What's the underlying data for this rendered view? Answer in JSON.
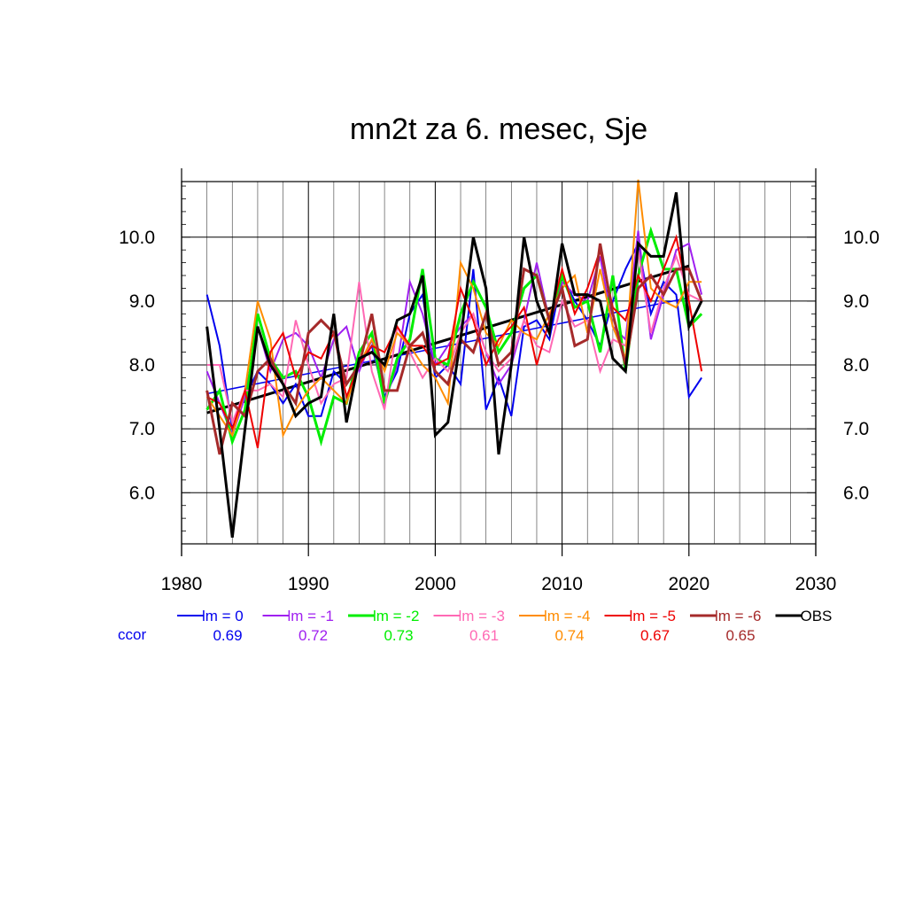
{
  "chart_data": {
    "type": "line",
    "title": "mn2t za 6. mesec, Sje",
    "xlim": [
      1980,
      2030
    ],
    "ylim": [
      5.2,
      10.87
    ],
    "x_ticks": [
      1980,
      1990,
      2000,
      2010,
      2020,
      2030
    ],
    "y_ticks": [
      6.0,
      7.0,
      8.0,
      9.0,
      10.0
    ],
    "y_tick_labels": [
      "6.0",
      "7.0",
      "8.0",
      "9.0",
      "10.0"
    ],
    "grid": true,
    "legend_placement": "below",
    "x": [
      1982,
      1983,
      1984,
      1985,
      1986,
      1987,
      1988,
      1989,
      1990,
      1991,
      1992,
      1993,
      1994,
      1995,
      1996,
      1997,
      1998,
      1999,
      2000,
      2001,
      2002,
      2003,
      2004,
      2005,
      2006,
      2007,
      2008,
      2009,
      2010,
      2011,
      2012,
      2013,
      2014,
      2015,
      2016,
      2017,
      2018,
      2019,
      2020,
      2021
    ],
    "ccor_label": "ccor",
    "series": [
      {
        "name": "lm = 0",
        "color": "#0000ee",
        "width": 2,
        "ccor": "0.69",
        "trend": [
          7.55,
          9.05
        ],
        "values": [
          9.1,
          8.3,
          7.0,
          7.5,
          7.9,
          7.7,
          7.4,
          7.7,
          7.2,
          7.2,
          7.9,
          7.7,
          8.0,
          8.3,
          7.5,
          7.9,
          8.8,
          9.1,
          7.8,
          8.0,
          7.7,
          9.5,
          7.3,
          7.8,
          7.2,
          8.6,
          8.7,
          8.4,
          9.4,
          9.0,
          8.7,
          8.3,
          9.0,
          9.5,
          9.9,
          8.8,
          9.3,
          9.1,
          7.5,
          7.8
        ]
      },
      {
        "name": "lm = -1",
        "color": "#a020f0",
        "width": 2,
        "ccor": "0.72",
        "values": [
          7.9,
          7.4,
          6.9,
          7.5,
          8.6,
          7.9,
          8.4,
          8.5,
          8.3,
          7.8,
          8.4,
          8.6,
          7.9,
          8.4,
          7.4,
          8.0,
          9.3,
          8.8,
          8.0,
          8.3,
          8.6,
          8.8,
          8.2,
          7.7,
          8.0,
          8.7,
          9.6,
          8.7,
          9.3,
          9.1,
          9.0,
          9.7,
          8.6,
          8.4,
          10.1,
          8.4,
          9.1,
          9.8,
          9.9,
          9.1
        ]
      },
      {
        "name": "lm = -2",
        "color": "#00ee00",
        "width": 3,
        "ccor": "0.73",
        "values": [
          7.3,
          7.6,
          6.8,
          7.3,
          8.8,
          8.1,
          7.8,
          7.9,
          7.5,
          6.8,
          7.5,
          7.4,
          8.2,
          8.5,
          7.4,
          8.1,
          8.4,
          9.5,
          8.1,
          8.0,
          8.8,
          9.3,
          8.9,
          8.2,
          8.5,
          9.2,
          9.4,
          8.7,
          9.4,
          8.9,
          9.0,
          8.2,
          9.4,
          7.9,
          9.4,
          10.1,
          9.5,
          9.5,
          8.6,
          8.8
        ]
      },
      {
        "name": "lm = -3",
        "color": "#ff69b4",
        "width": 2,
        "ccor": "0.61",
        "values": [
          8.0,
          8.0,
          7.1,
          7.6,
          7.6,
          7.7,
          7.5,
          8.7,
          8.0,
          7.4,
          7.7,
          7.8,
          9.3,
          7.9,
          7.3,
          8.6,
          8.2,
          7.8,
          8.1,
          7.9,
          8.5,
          8.8,
          8.2,
          7.9,
          8.1,
          8.7,
          8.3,
          8.2,
          9.0,
          8.6,
          8.7,
          7.9,
          8.4,
          8.3,
          9.8,
          8.5,
          9.2,
          9.7,
          9.1,
          9.0
        ]
      },
      {
        "name": "lm = -4",
        "color": "#ff8c00",
        "width": 2,
        "ccor": "0.74",
        "values": [
          7.5,
          7.2,
          6.9,
          7.6,
          9.0,
          8.4,
          6.9,
          7.3,
          7.6,
          7.8,
          7.6,
          7.4,
          8.0,
          8.4,
          7.9,
          8.5,
          8.3,
          8.0,
          7.8,
          7.4,
          9.6,
          9.2,
          8.5,
          8.3,
          8.7,
          8.5,
          8.4,
          8.8,
          9.2,
          9.4,
          8.5,
          9.5,
          8.6,
          8.1,
          10.9,
          9.2,
          9.0,
          8.9,
          9.3,
          9.3
        ]
      },
      {
        "name": "lm = -5",
        "color": "#ee0000",
        "width": 2,
        "ccor": "0.67",
        "values": [
          7.5,
          7.4,
          7.0,
          7.6,
          6.7,
          8.2,
          8.5,
          7.8,
          8.2,
          8.1,
          8.5,
          7.5,
          8.0,
          8.3,
          8.2,
          8.6,
          8.3,
          8.3,
          8.0,
          8.1,
          9.2,
          8.7,
          8.0,
          8.4,
          8.6,
          8.9,
          8.0,
          8.7,
          9.5,
          8.8,
          9.2,
          9.8,
          8.9,
          8.7,
          9.4,
          9.0,
          9.5,
          10.0,
          9.0,
          7.9
        ]
      },
      {
        "name": "lm = -6",
        "color": "#a52a2a",
        "width": 3,
        "ccor": "0.65",
        "values": [
          7.6,
          6.6,
          7.4,
          7.2,
          7.9,
          8.1,
          7.7,
          7.4,
          8.5,
          8.7,
          8.5,
          7.7,
          8.0,
          8.8,
          7.6,
          7.6,
          8.3,
          8.5,
          7.9,
          7.7,
          8.4,
          8.2,
          8.8,
          8.0,
          8.2,
          9.5,
          9.4,
          8.7,
          9.2,
          8.3,
          8.4,
          9.9,
          8.8,
          8.0,
          9.2,
          9.4,
          9.1,
          9.5,
          9.5,
          9.0
        ]
      },
      {
        "name": "OBS",
        "color": "#000000",
        "width": 3,
        "trend": [
          7.25,
          9.55
        ],
        "values": [
          8.6,
          7.0,
          5.3,
          7.0,
          8.6,
          8.0,
          7.7,
          7.2,
          7.4,
          7.5,
          8.8,
          7.1,
          8.1,
          8.2,
          8.0,
          8.7,
          8.8,
          9.4,
          6.9,
          7.1,
          8.4,
          10.0,
          9.2,
          6.6,
          8.0,
          10.0,
          9.0,
          8.5,
          9.9,
          9.1,
          9.1,
          9.0,
          8.1,
          7.9,
          9.9,
          9.7,
          9.7,
          10.7,
          8.6,
          9.0
        ]
      }
    ]
  }
}
